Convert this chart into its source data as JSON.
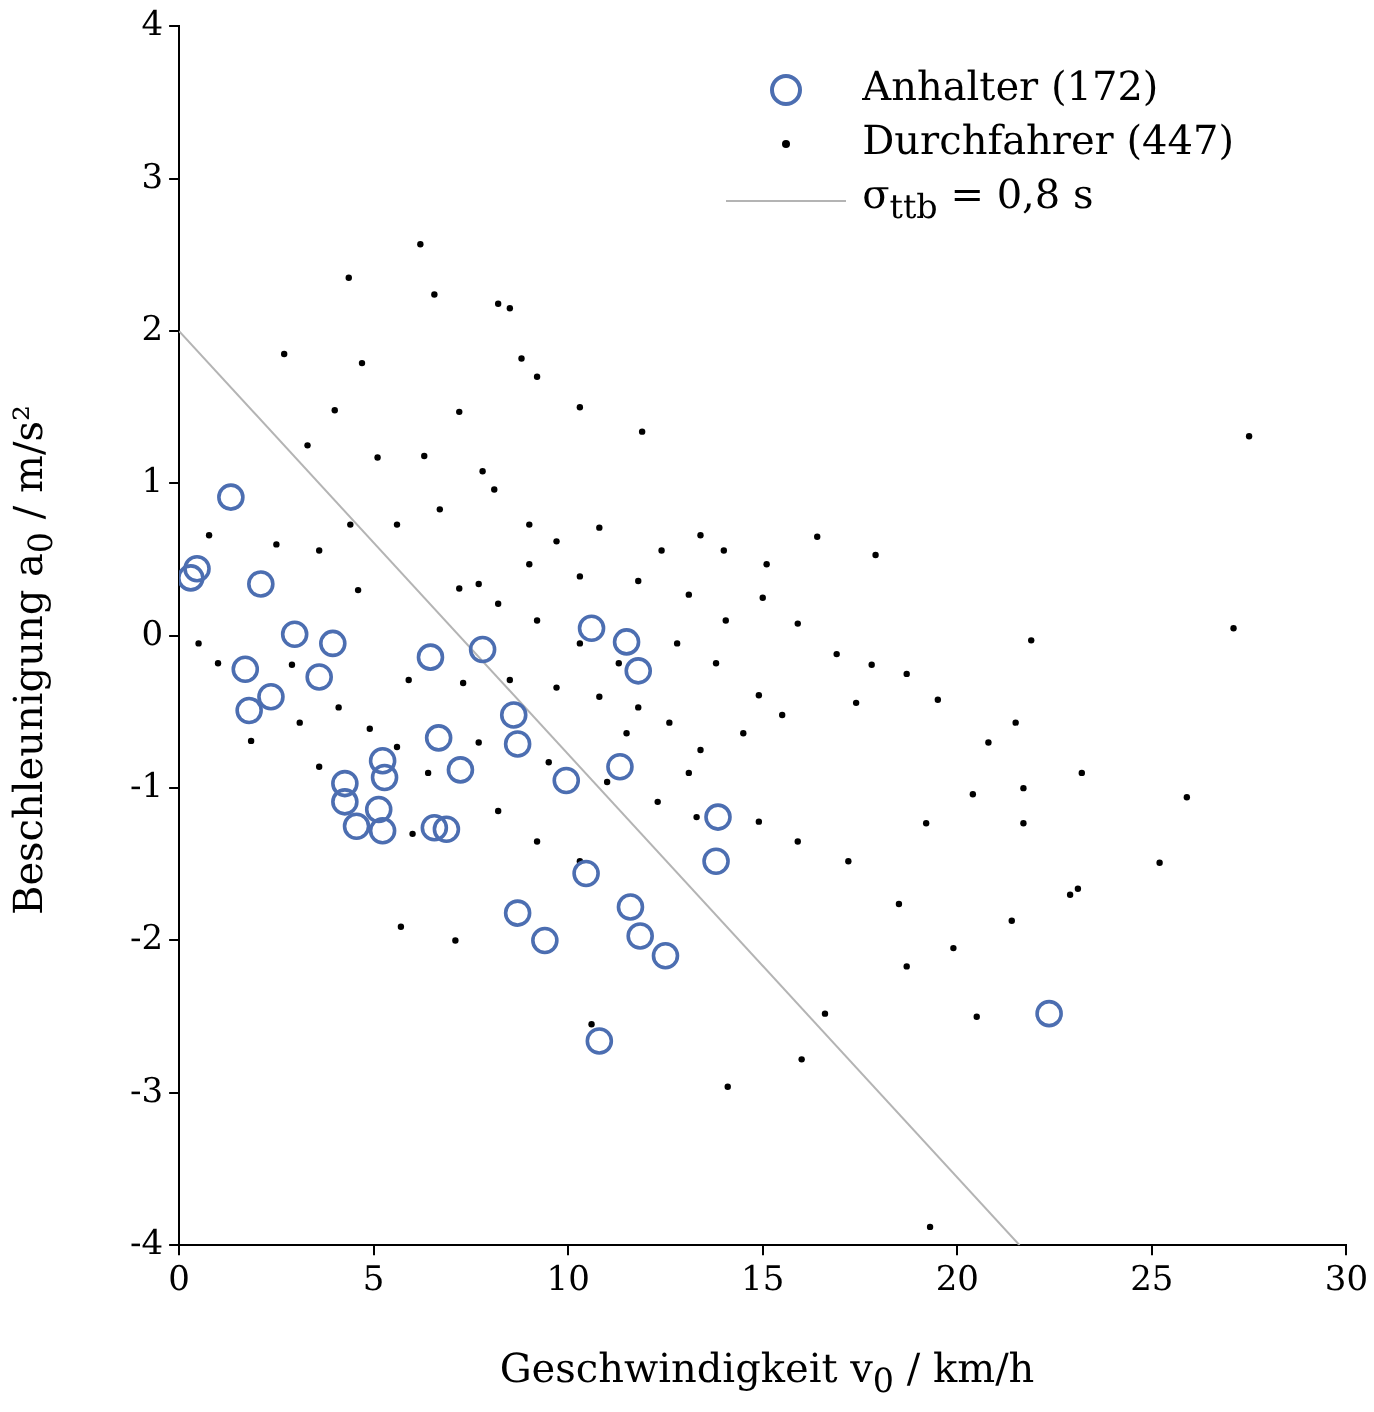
{
  "chart_data": {
    "type": "scatter",
    "xlabel": "Geschwindigkeit v$_{0}$ / km/h",
    "ylabel": "Beschleunigung a$_{0}$ / m/s²",
    "xlim": [
      0,
      30
    ],
    "ylim": [
      -4,
      4
    ],
    "xticks": [
      0,
      5,
      10,
      15,
      20,
      25,
      30
    ],
    "yticks": [
      -4,
      -3,
      -2,
      -1,
      0,
      1,
      2,
      3,
      4
    ],
    "grid": false,
    "legend": "top right",
    "series": [
      {
        "name": "Anhalter (172)",
        "marker": "circle",
        "color": "#4c6eb1",
        "x": [
          0.3,
          0.46,
          1.33,
          2.1,
          1.7,
          1.8,
          2.36,
          2.97,
          3.95,
          3.6,
          4.26,
          4.26,
          4.56,
          5.23,
          5.28,
          5.13,
          5.23,
          6.46,
          6.67,
          6.56,
          6.87,
          7.23,
          7.8,
          8.6,
          8.7,
          8.7,
          9.4,
          9.95,
          10.46,
          10.6,
          10.8,
          11.33,
          11.5,
          11.8,
          11.6,
          11.85,
          12.5,
          13.85,
          13.8,
          22.36
        ],
        "values": [
          0.38,
          0.44,
          0.91,
          0.34,
          -0.22,
          -0.49,
          -0.4,
          0.01,
          -0.05,
          -0.27,
          -0.97,
          -1.09,
          -1.25,
          -0.82,
          -0.93,
          -1.14,
          -1.28,
          -0.14,
          -0.67,
          -1.26,
          -1.27,
          -0.88,
          -0.09,
          -0.52,
          -0.71,
          -1.82,
          -2.0,
          -0.95,
          -1.56,
          0.05,
          -2.66,
          -0.86,
          -0.04,
          -0.23,
          -1.78,
          -1.97,
          -2.1,
          -1.19,
          -1.48,
          -2.48
        ]
      },
      {
        "name": "Durchfahrer (447)",
        "marker": "circle",
        "color": "#000000",
        "x": [
          6.2,
          6.56,
          4.36,
          2.7,
          4.7,
          8.2,
          8.5,
          8.8,
          9.2,
          10.3,
          11.9,
          7.2,
          3.3,
          4.0,
          5.1,
          6.3,
          7.8,
          5.6,
          4.4,
          0.77,
          2.5,
          3.6,
          6.7,
          8.1,
          9.0,
          9.7,
          10.8,
          12.4,
          13.4,
          14.0,
          15.1,
          16.4,
          17.9,
          15.0,
          14.05,
          15.9,
          16.9,
          17.8,
          17.4,
          18.7,
          19.5,
          20.8,
          21.5,
          21.9,
          27.5,
          27.1,
          25.9,
          25.2,
          21.7,
          20.4,
          21.7,
          23.2,
          22.9,
          23.1,
          21.4,
          20.5,
          19.9,
          18.7,
          18.5,
          19.2,
          19.3,
          16.6,
          16.0,
          14.1,
          10.6,
          7.1,
          5.7,
          6.0,
          3.6,
          1.85,
          1.0,
          0.5,
          2.9,
          4.1,
          4.9,
          5.9,
          7.3,
          8.5,
          9.7,
          10.8,
          11.8,
          12.6,
          13.4,
          14.5,
          15.5,
          11.3,
          10.3,
          9.2,
          8.2,
          7.2,
          4.6,
          12.8,
          13.8,
          14.9,
          11.0,
          12.3,
          13.3,
          9.2,
          10.3,
          8.2,
          14.9,
          15.9,
          17.2,
          13.1,
          11.5,
          9.5,
          7.7,
          5.6,
          6.4,
          3.1,
          7.7,
          9.0,
          10.3,
          11.8,
          13.1
        ],
        "values": [
          2.57,
          2.24,
          2.35,
          1.85,
          1.79,
          2.18,
          2.15,
          1.82,
          1.7,
          1.5,
          1.34,
          1.47,
          1.25,
          1.48,
          1.17,
          1.18,
          1.08,
          0.73,
          0.73,
          0.66,
          0.6,
          0.56,
          0.83,
          0.96,
          0.73,
          0.62,
          0.71,
          0.56,
          0.66,
          0.56,
          0.47,
          0.65,
          0.53,
          0.25,
          0.1,
          0.08,
          -0.12,
          -0.19,
          -0.44,
          -0.25,
          -0.42,
          -0.7,
          -0.57,
          -0.03,
          1.31,
          0.05,
          -1.06,
          -1.49,
          -1.23,
          -1.04,
          -1.0,
          -0.9,
          -1.7,
          -1.66,
          -1.87,
          -2.5,
          -2.05,
          -2.17,
          -1.76,
          -1.23,
          -3.88,
          -2.48,
          -2.78,
          -2.96,
          -2.55,
          -2.0,
          -1.91,
          -1.3,
          -0.86,
          -0.69,
          -0.18,
          -0.05,
          -0.19,
          -0.47,
          -0.61,
          -0.29,
          -0.31,
          -0.29,
          -0.34,
          -0.4,
          -0.47,
          -0.57,
          -0.75,
          -0.64,
          -0.52,
          -0.18,
          -0.05,
          0.1,
          0.21,
          0.31,
          0.3,
          -0.05,
          -0.18,
          -0.39,
          -0.96,
          -1.09,
          -1.19,
          -1.35,
          -1.48,
          -1.15,
          -1.22,
          -1.35,
          -1.48,
          -0.9,
          -0.64,
          -0.83,
          -0.7,
          -0.73,
          -0.9,
          -0.57,
          0.34,
          0.47,
          0.39,
          0.36,
          0.27
        ]
      },
      {
        "name": "σ$_{ttb}$ = 0,8 s",
        "type": "line",
        "marker": "none",
        "line_style": "solid",
        "color": "#b4b4b4",
        "x": [
          0,
          21.6
        ],
        "values": [
          2,
          -4
        ]
      }
    ]
  }
}
